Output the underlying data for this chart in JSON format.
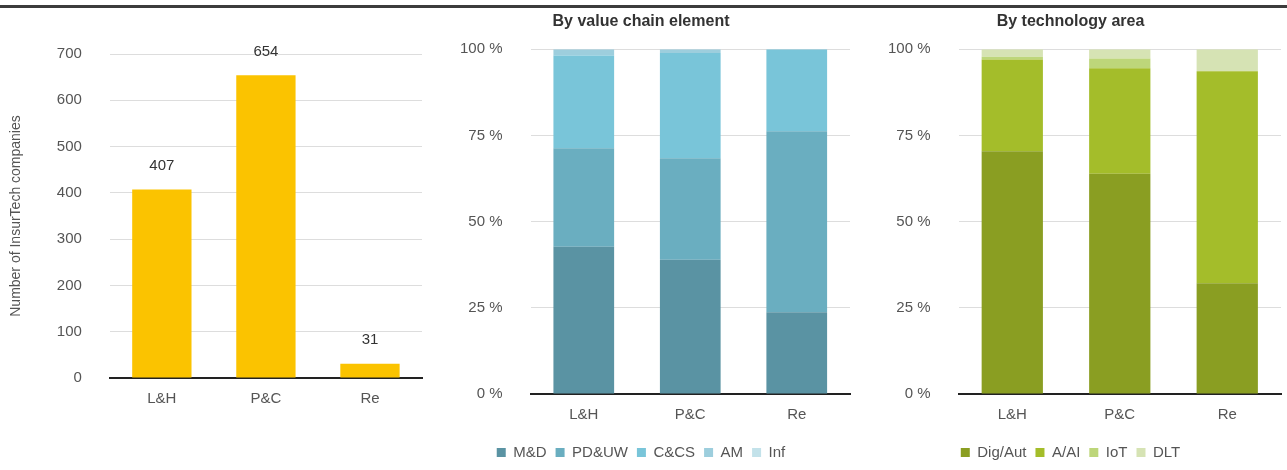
{
  "chart_data": [
    {
      "type": "bar",
      "ylabel": "Number of InsurTech companies",
      "categories": [
        "L&H",
        "P&C",
        "Re"
      ],
      "values": [
        407,
        654,
        31
      ],
      "color": "#fbc300",
      "ylim": [
        0,
        700
      ],
      "yticks": [
        0,
        100,
        200,
        300,
        400,
        500,
        600,
        700
      ],
      "grid": "y",
      "data_labels": true,
      "legend": false
    },
    {
      "type": "bar",
      "title": "By value chain element",
      "categories": [
        "L&H",
        "P&C",
        "Re"
      ],
      "stacked": true,
      "ylim": [
        0,
        100
      ],
      "yticks": [
        {
          "value": 0,
          "label": "0 %"
        },
        {
          "value": 25,
          "label": "25 %"
        },
        {
          "value": 50,
          "label": "50 %"
        },
        {
          "value": 75,
          "label": "75 %"
        },
        {
          "value": 100,
          "label": "100 %"
        }
      ],
      "grid": "y",
      "legend": "bottom",
      "series": [
        {
          "name": "M&D",
          "color": "#5a93a3",
          "values": [
            42.7,
            38.9,
            23.7
          ]
        },
        {
          "name": "PD&UW",
          "color": "#6aaec0",
          "values": [
            28.6,
            29.5,
            52.5
          ]
        },
        {
          "name": "C&CS",
          "color": "#79c5d9",
          "values": [
            26.9,
            30.5,
            23.8
          ]
        },
        {
          "name": "AM",
          "color": "#9dcedd",
          "values": [
            1.8,
            1.1,
            0
          ]
        },
        {
          "name": "Inf",
          "color": "#c3e2ea",
          "values": [
            null,
            null,
            0
          ]
        }
      ]
    },
    {
      "type": "bar",
      "title": "By technology area",
      "categories": [
        "L&H",
        "P&C",
        "Re"
      ],
      "stacked": true,
      "ylim": [
        0,
        100
      ],
      "yticks": [
        {
          "value": 0,
          "label": "0 %"
        },
        {
          "value": 25,
          "label": "25 %"
        },
        {
          "value": 50,
          "label": "50 %"
        },
        {
          "value": 75,
          "label": "75 %"
        },
        {
          "value": 100,
          "label": "100 %"
        }
      ],
      "grid": "y",
      "legend": "bottom",
      "series": [
        {
          "name": "Dig/Aut",
          "color": "#8a9e22",
          "values": [
            70.4,
            63.9,
            32.1
          ]
        },
        {
          "name": "A/AI",
          "color": "#a4bd2a",
          "values": [
            26.6,
            30.6,
            61.5
          ]
        },
        {
          "name": "IoT",
          "color": "#bdd67a",
          "values": [
            0.8,
            2.8,
            0
          ]
        },
        {
          "name": "DLT",
          "color": "#d6e3b4",
          "values": [
            2.2,
            2.7,
            6.4
          ]
        }
      ]
    }
  ]
}
